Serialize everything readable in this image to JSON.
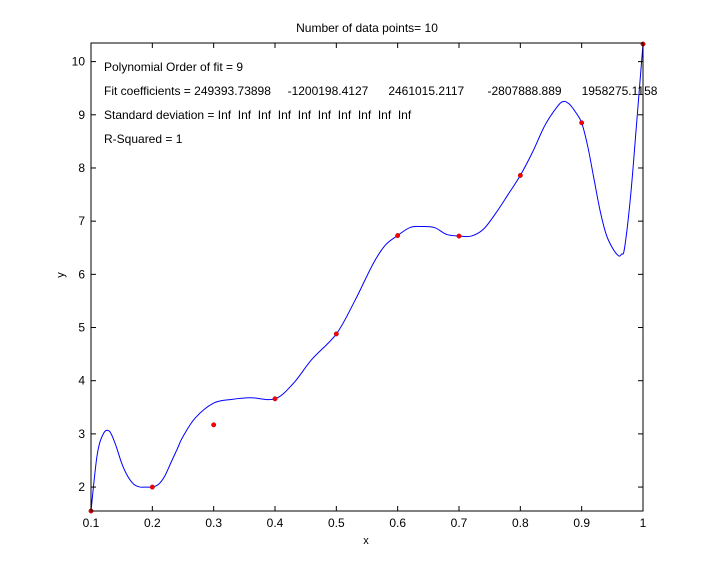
{
  "chart_data": {
    "type": "line",
    "title": "Number of data points= 10",
    "xlabel": "x",
    "ylabel": "y",
    "xlim": [
      0.1,
      1.0
    ],
    "ylim": [
      1.55,
      10.35
    ],
    "grid": false,
    "x_ticks": [
      0.1,
      0.2,
      0.3,
      0.4,
      0.5,
      0.6,
      0.7,
      0.8,
      0.9,
      1.0
    ],
    "x_tick_labels": [
      "0.1",
      "0.2",
      "0.3",
      "0.4",
      "0.5",
      "0.6",
      "0.7",
      "0.8",
      "0.9",
      "1"
    ],
    "y_ticks": [
      2,
      3,
      4,
      5,
      6,
      7,
      8,
      9,
      10
    ],
    "y_tick_labels": [
      "2",
      "3",
      "4",
      "5",
      "6",
      "7",
      "8",
      "9",
      "10"
    ],
    "annotations": [
      "Polynomial Order of fit = 9",
      "Fit coefficients = 249393.73898     -1200198.4127      2461015.2117       -2807888.889      1958275.1158",
      "Standard deviation = Inf  Inf  Inf  Inf  Inf  Inf  Inf  Inf  Inf  Inf",
      "R-Squared = 1"
    ],
    "series": [
      {
        "kind": "points",
        "color": "#ff0000",
        "x": [
          0.1,
          0.2,
          0.3,
          0.4,
          0.5,
          0.6,
          0.7,
          0.8,
          0.9,
          1.0
        ],
        "y": [
          1.55,
          2.0,
          3.17,
          3.66,
          4.88,
          6.73,
          6.72,
          7.86,
          8.85,
          10.33
        ]
      },
      {
        "kind": "fit-curve",
        "color": "#0000ff",
        "x": [
          0.1,
          0.11,
          0.12,
          0.13,
          0.14,
          0.15,
          0.16,
          0.17,
          0.18,
          0.19,
          0.2,
          0.21,
          0.22,
          0.23,
          0.24,
          0.25,
          0.27,
          0.3,
          0.33,
          0.36,
          0.4,
          0.43,
          0.46,
          0.5,
          0.53,
          0.56,
          0.58,
          0.6,
          0.62,
          0.64,
          0.66,
          0.68,
          0.7,
          0.72,
          0.74,
          0.76,
          0.78,
          0.8,
          0.82,
          0.84,
          0.86,
          0.87,
          0.88,
          0.89,
          0.9,
          0.91,
          0.92,
          0.93,
          0.94,
          0.95,
          0.96,
          0.965,
          0.97,
          0.98,
          0.99,
          1.0
        ],
        "y": [
          1.55,
          2.6,
          3.0,
          3.05,
          2.8,
          2.45,
          2.2,
          2.05,
          2.0,
          2.0,
          2.0,
          2.05,
          2.2,
          2.45,
          2.7,
          2.95,
          3.3,
          3.58,
          3.65,
          3.68,
          3.66,
          3.95,
          4.4,
          4.88,
          5.5,
          6.2,
          6.55,
          6.73,
          6.88,
          6.9,
          6.88,
          6.75,
          6.72,
          6.72,
          6.85,
          7.15,
          7.5,
          7.86,
          8.3,
          8.8,
          9.15,
          9.25,
          9.2,
          9.05,
          8.85,
          8.4,
          7.8,
          7.2,
          6.75,
          6.5,
          6.35,
          6.38,
          6.5,
          7.5,
          8.9,
          10.33
        ]
      }
    ]
  }
}
